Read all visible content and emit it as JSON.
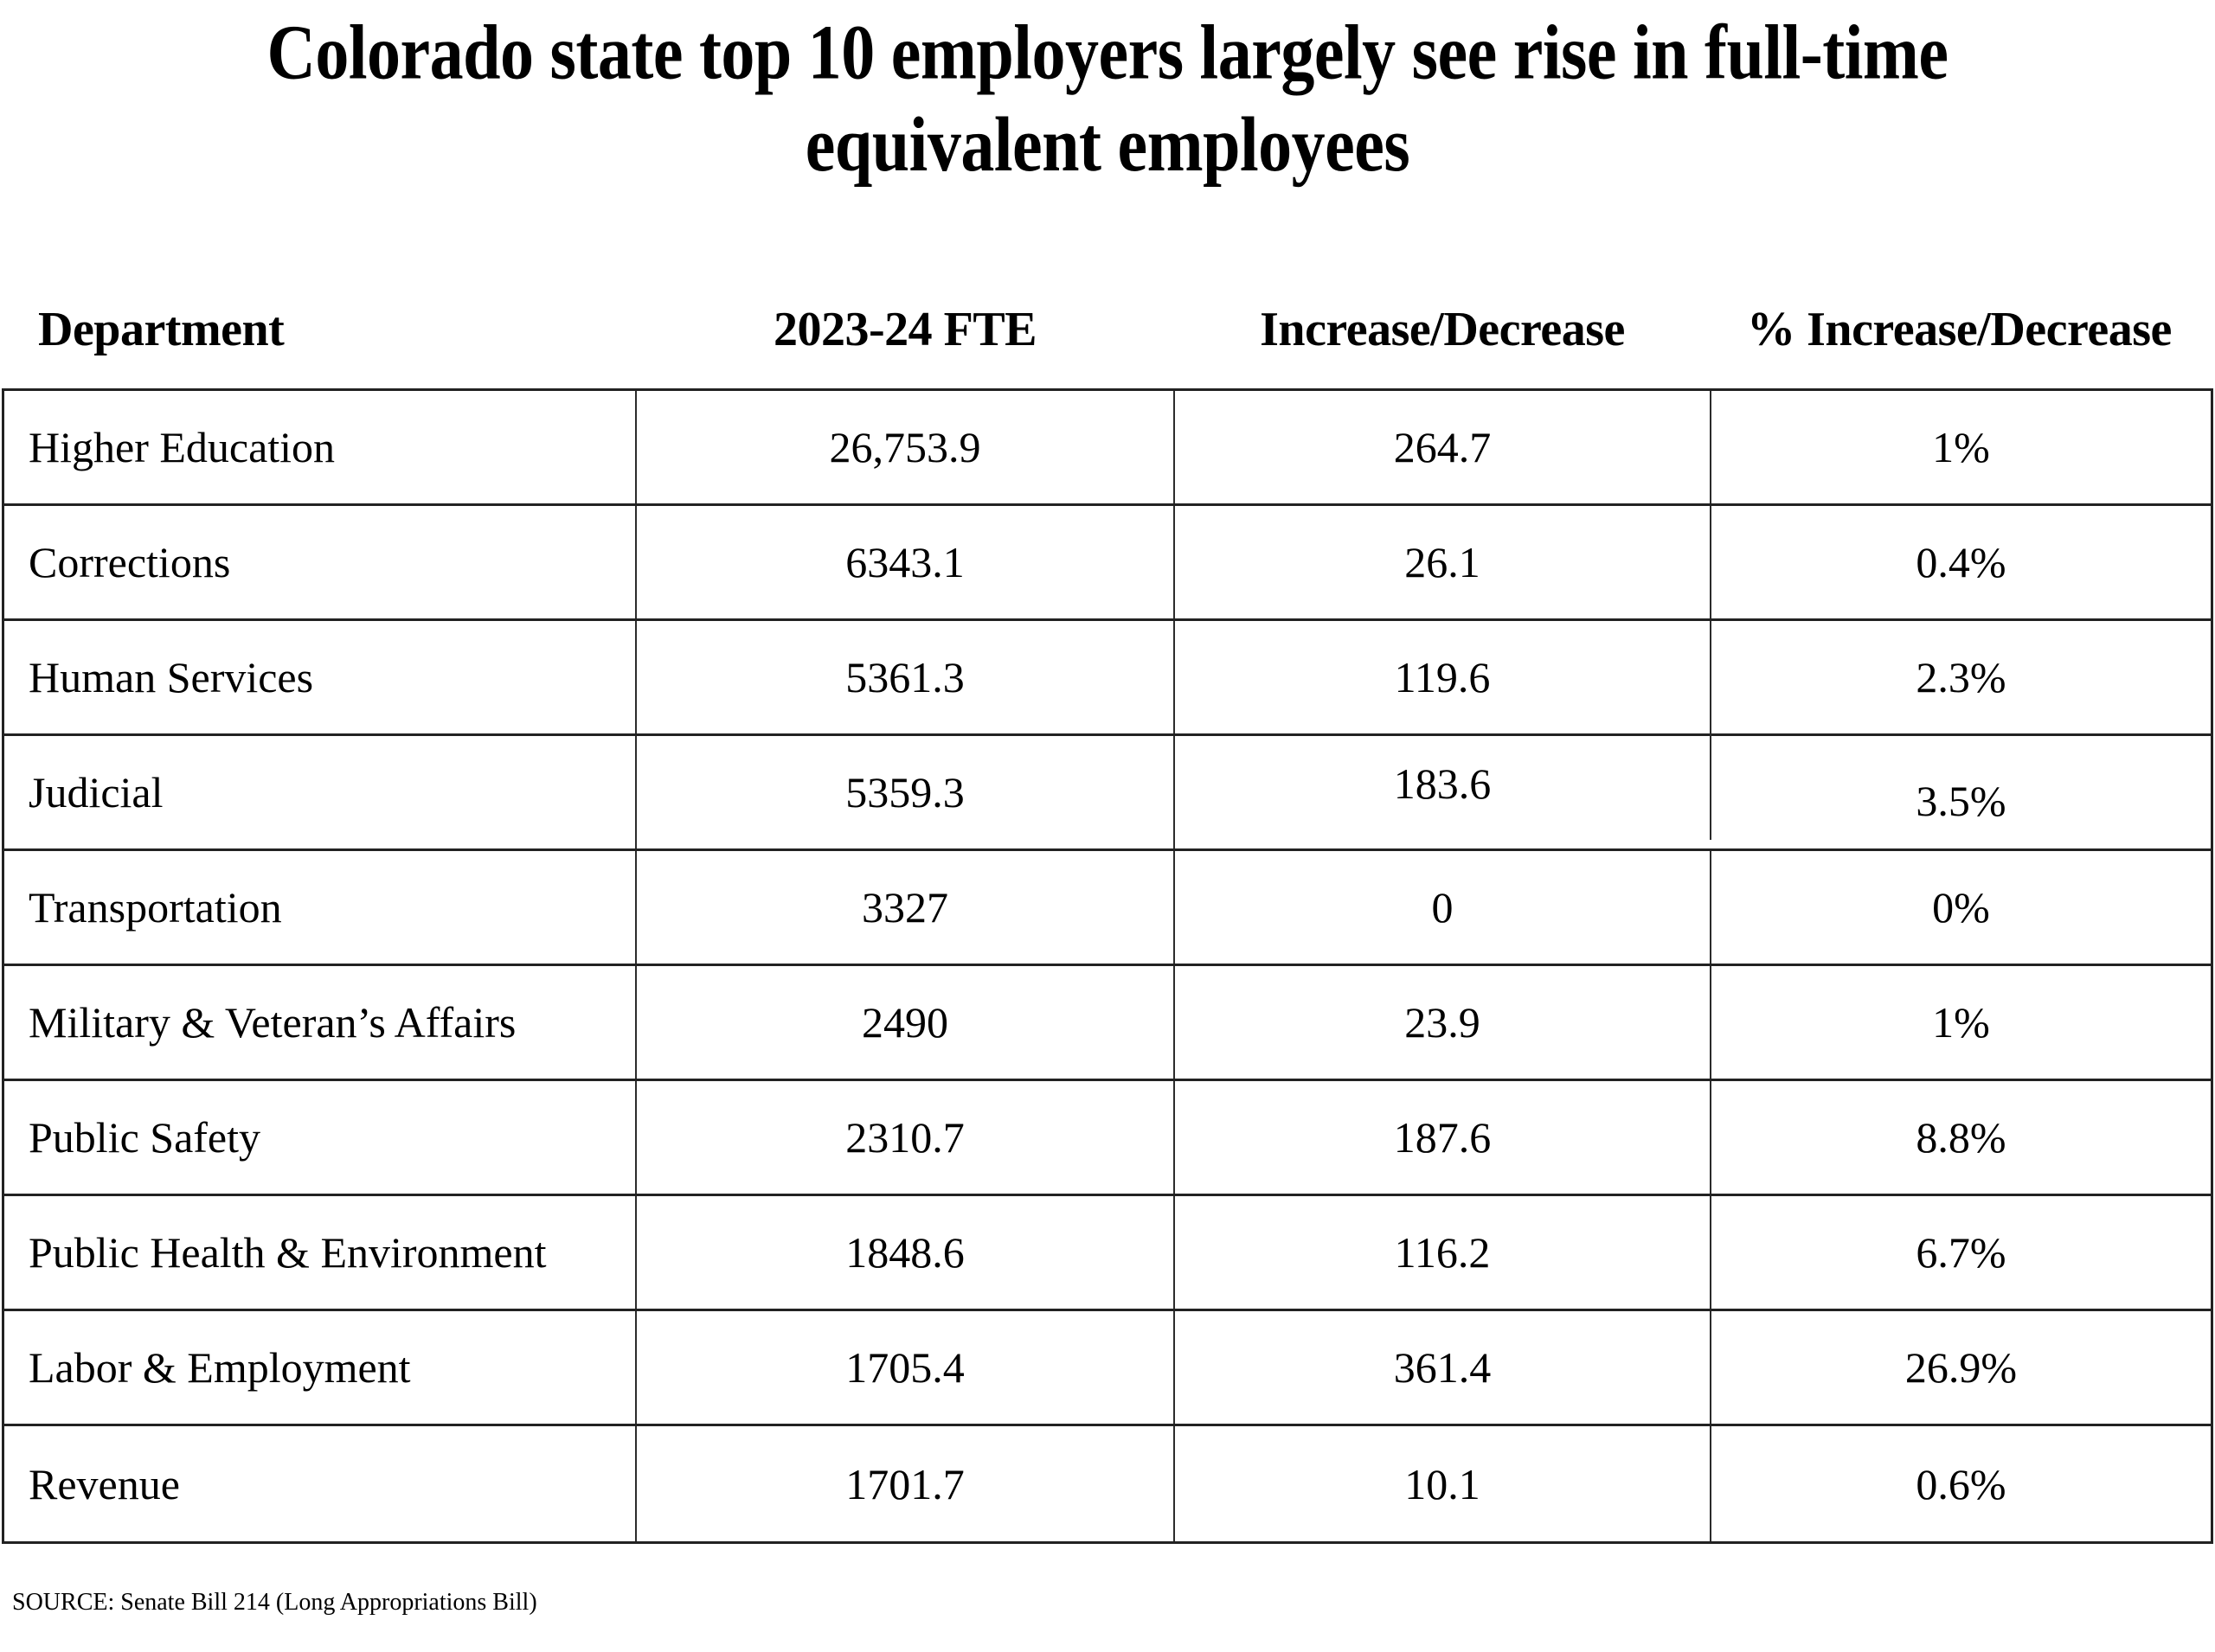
{
  "chart_data": {
    "type": "table",
    "title": "Colorado state top 10 employers largely see rise in full-time equivalent employees",
    "title_lines": [
      "Colorado state top 10 employers largely see rise in full-time",
      "equivalent employees"
    ],
    "columns": [
      "Department",
      "2023-24 FTE",
      "Increase/Decrease",
      "% Increase/Decrease"
    ],
    "rows": [
      [
        "Higher Education",
        "26,753.9",
        "264.7",
        "1%"
      ],
      [
        "Corrections",
        "6343.1",
        "26.1",
        "0.4%"
      ],
      [
        "Human Services",
        "5361.3",
        "119.6",
        "2.3%"
      ],
      [
        "Judicial",
        "5359.3",
        "183.6",
        "3.5%"
      ],
      [
        "Transportation",
        "3327",
        "0",
        "0%"
      ],
      [
        "Military & Veteran’s Affairs",
        "2490",
        "23.9",
        "1%"
      ],
      [
        "Public Safety",
        "2310.7",
        "187.6",
        "8.8%"
      ],
      [
        "Public Health & Environment",
        "1848.6",
        "116.2",
        "6.7%"
      ],
      [
        "Labor & Employment",
        "1705.4",
        "361.4",
        "26.9%"
      ],
      [
        "Revenue",
        "1701.7",
        "10.1",
        "0.6%"
      ]
    ],
    "source": "SOURCE: Senate Bill 214 (Long Appropriations Bill)"
  },
  "colors": {
    "background": "#ffffff",
    "text": "#000000",
    "border_horizontal": "#222222",
    "border_vertical": "#2b2b2b"
  }
}
